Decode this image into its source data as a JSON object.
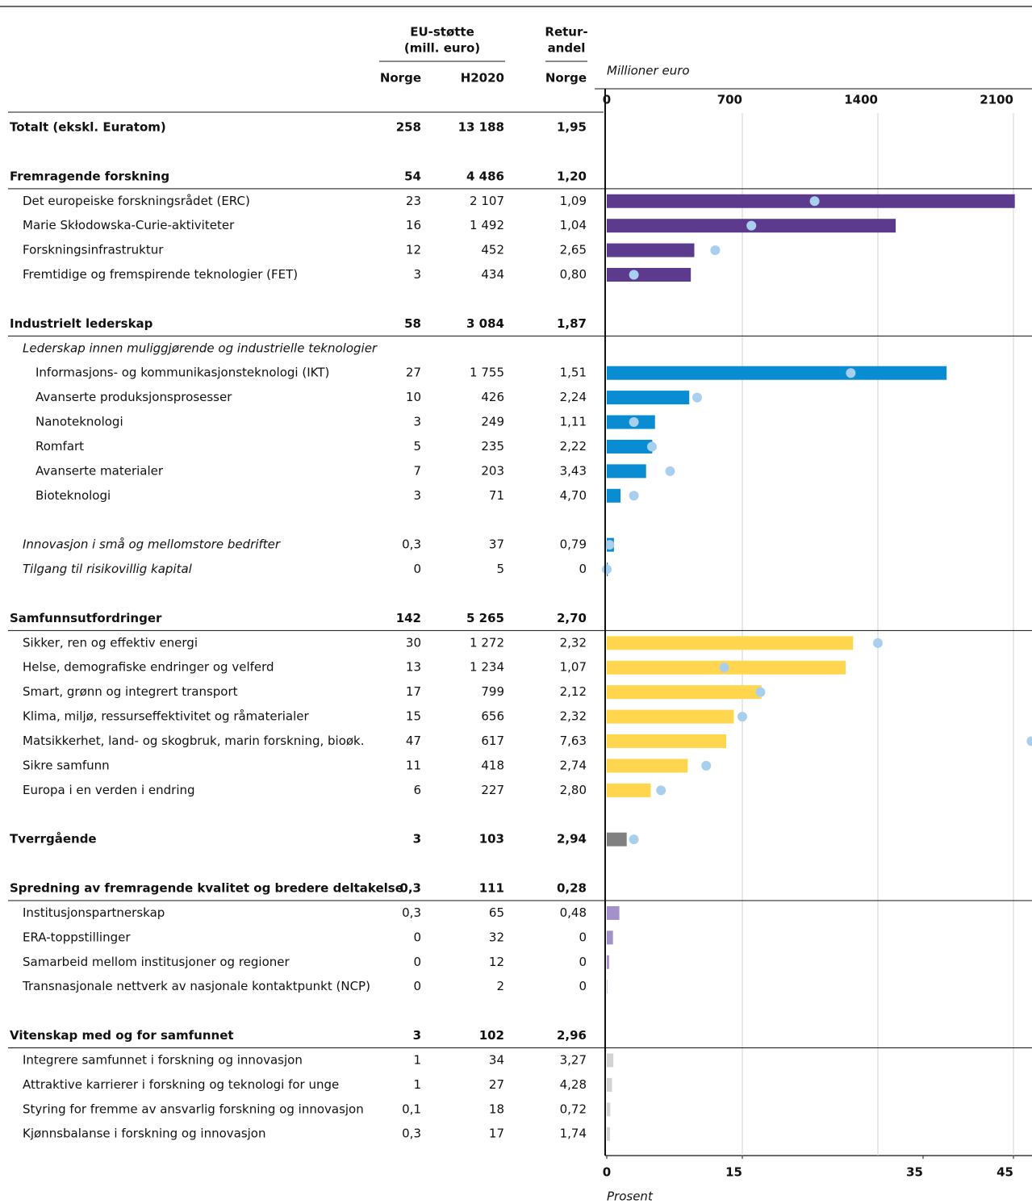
{
  "header": {
    "eu_title": "EU-støtte",
    "eu_unit": "(mill. euro)",
    "retur_title": "Retur-",
    "retur_sub": "andel",
    "col_norge": "Norge",
    "col_h2020": "H2020",
    "col_retur_norge": "Norge"
  },
  "chart": {
    "type": "bar",
    "x_label": "Millioner euro",
    "xlim": [
      0,
      2100
    ],
    "xticks": [
      0,
      700,
      1400,
      2100
    ],
    "x2_label": "Prosent",
    "x2lim": [
      0,
      45
    ],
    "x2ticks": [
      0,
      15,
      35,
      45
    ],
    "grid": true,
    "dot_color": "#a9cfee"
  },
  "total": {
    "label": "Totalt (ekskl. Euratom)",
    "norge": "258",
    "h2020": "13 188",
    "retur": "1,95"
  },
  "groups": [
    {
      "header": {
        "label": "Fremragende forskning",
        "norge": "54",
        "h2020": "4 486",
        "retur": "1,20"
      },
      "color": "#5c3a8e",
      "dots": true,
      "rows": [
        {
          "label": "Det europeiske forskningsrådet (ERC)",
          "norge": "23",
          "h2020": "2 107",
          "retur": "1,09"
        },
        {
          "label": "Marie Skłodowska-Curie-aktiviteter",
          "norge": "16",
          "h2020": "1 492",
          "retur": "1,04"
        },
        {
          "label": "Forskningsinfrastruktur",
          "norge": "12",
          "h2020": "452",
          "retur": "2,65"
        },
        {
          "label": "Fremtidige og fremspirende teknologier (FET)",
          "norge": "3",
          "h2020": "434",
          "retur": "0,80"
        }
      ]
    },
    {
      "header": {
        "label": "Industrielt lederskap",
        "norge": "58",
        "h2020": "3 084",
        "retur": "1,87"
      },
      "color": "#0a8cd2",
      "dots": true,
      "rows": [
        {
          "label": "Lederskap innen muliggjørende og industrielle teknologier",
          "style": "italic"
        },
        {
          "label": "Informasjons- og kommunikasjonsteknologi (IKT)",
          "norge": "27",
          "h2020": "1 755",
          "retur": "1,51",
          "style": "indent"
        },
        {
          "label": "Avanserte produksjonsprosesser",
          "norge": "10",
          "h2020": "426",
          "retur": "2,24",
          "style": "indent"
        },
        {
          "label": "Nanoteknologi",
          "norge": "3",
          "h2020": "249",
          "retur": "1,11",
          "style": "indent"
        },
        {
          "label": "Romfart",
          "norge": "5",
          "h2020": "235",
          "retur": "2,22",
          "style": "indent"
        },
        {
          "label": "Avanserte materialer",
          "norge": "7",
          "h2020": "203",
          "retur": "3,43",
          "style": "indent"
        },
        {
          "label": "Bioteknologi",
          "norge": "3",
          "h2020": "71",
          "retur": "4,70",
          "style": "indent"
        },
        {
          "label": "Innovasjon i små og mellomstore bedrifter",
          "norge": "0,3",
          "h2020": "37",
          "retur": "0,79",
          "style": "italic"
        },
        {
          "label": "Tilgang til risikovillig kapital",
          "norge": "0",
          "h2020": "5",
          "retur": "0",
          "style": "italic"
        }
      ]
    },
    {
      "header": {
        "label": "Samfunnsutfordringer",
        "norge": "142",
        "h2020": "5 265",
        "retur": "2,70"
      },
      "color": "#ffd64d",
      "dots": true,
      "rows": [
        {
          "label": "Sikker, ren og effektiv energi",
          "norge": "30",
          "h2020": "1 272",
          "retur": "2,32"
        },
        {
          "label": "Helse, demografiske endringer og velferd",
          "norge": "13",
          "h2020": "1 234",
          "retur": "1,07"
        },
        {
          "label": "Smart, grønn og integrert transport",
          "norge": "17",
          "h2020": "799",
          "retur": "2,12"
        },
        {
          "label": "Klima, miljø, ressurseffektivitet og råmaterialer",
          "norge": "15",
          "h2020": "656",
          "retur": "2,32"
        },
        {
          "label": "Matsikkerhet, land- og skogbruk, marin forskning, bioøk.",
          "norge": "47",
          "h2020": "617",
          "retur": "7,63"
        },
        {
          "label": "Sikre samfunn",
          "norge": "11",
          "h2020": "418",
          "retur": "2,74"
        },
        {
          "label": "Europa i en verden i endring",
          "norge": "6",
          "h2020": "227",
          "retur": "2,80"
        }
      ]
    },
    {
      "header": {
        "label": "Tverrgående",
        "norge": "3",
        "h2020": "103",
        "retur": "2,94"
      },
      "color": "#808080",
      "dots": true,
      "header_bar": true,
      "rows": []
    },
    {
      "header": {
        "label": "Spredning av fremragende kvalitet og bredere deltakelse",
        "norge": "0,3",
        "h2020": "111",
        "retur": "0,28"
      },
      "color": "#a391cc",
      "dots": false,
      "rows": [
        {
          "label": "Institusjonspartnerskap",
          "norge": "0,3",
          "h2020": "65",
          "retur": "0,48"
        },
        {
          "label": "ERA-toppstillinger",
          "norge": "0",
          "h2020": "32",
          "retur": "0"
        },
        {
          "label": "Samarbeid mellom institusjoner og regioner",
          "norge": "0",
          "h2020": "12",
          "retur": "0"
        },
        {
          "label": "Transnasjonale nettverk av nasjonale kontaktpunkt (NCP)",
          "norge": "0",
          "h2020": "2",
          "retur": "0"
        }
      ]
    },
    {
      "header": {
        "label": "Vitenskap med og for samfunnet",
        "norge": "3",
        "h2020": "102",
        "retur": "2,96"
      },
      "color": "#d3d3d3",
      "dots": false,
      "rows": [
        {
          "label": "Integrere samfunnet i forskning og innovasjon",
          "norge": "1",
          "h2020": "34",
          "retur": "3,27"
        },
        {
          "label": "Attraktive karrierer i forskning og teknologi for unge",
          "norge": "1",
          "h2020": "27",
          "retur": "4,28"
        },
        {
          "label": "Styring for fremme av ansvarlig forskning og innovasjon",
          "norge": "0,1",
          "h2020": "18",
          "retur": "0,72"
        },
        {
          "label": "Kjønnsbalanse i forskning og innovasjon",
          "norge": "0,3",
          "h2020": "17",
          "retur": "1,74"
        }
      ]
    }
  ]
}
